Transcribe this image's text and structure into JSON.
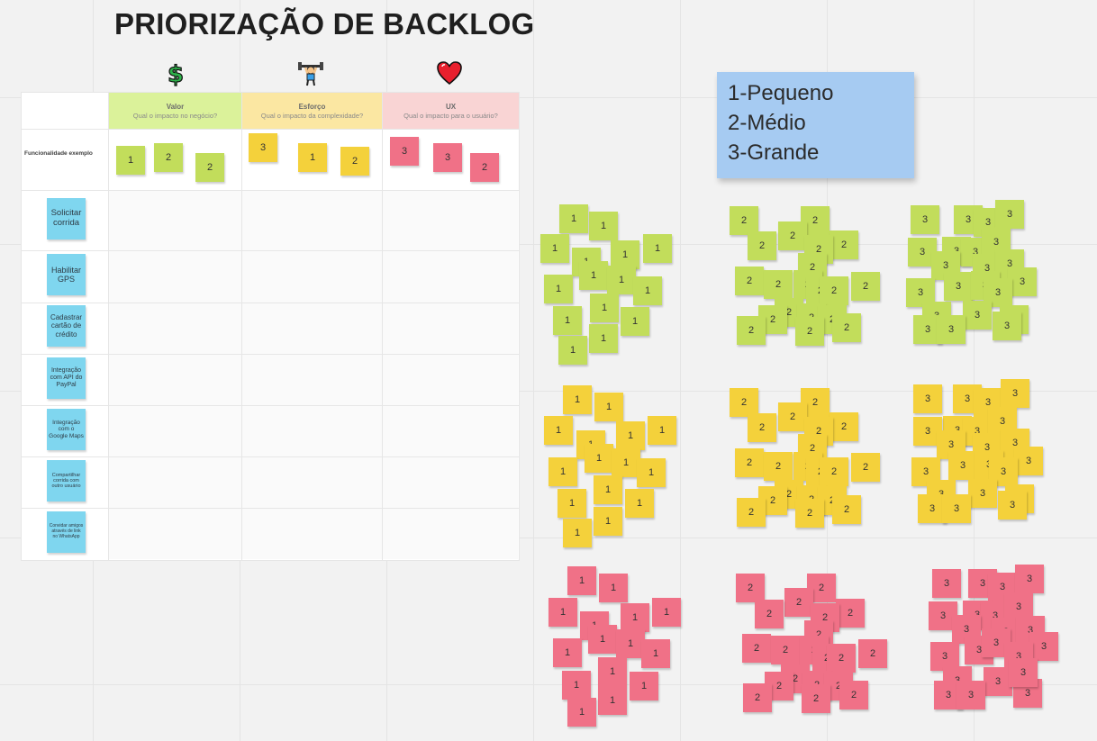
{
  "title": "PRIORIZAÇÃO DE BACKLOG",
  "colors": {
    "green": "#c2dd5b",
    "yellow": "#f4d13b",
    "pink": "#f07187",
    "cyan": "#7fd6ef",
    "legend": "#a6cbf2"
  },
  "columns": [
    {
      "label": "Valor",
      "sub": "Qual o impacto no negócio?",
      "icon": "dollar-icon"
    },
    {
      "label": "Esforço",
      "sub": "Qual o impacto da complexidade?",
      "icon": "weightlifter-icon"
    },
    {
      "label": "UX",
      "sub": "Qual o impacto para o usuário?",
      "icon": "heart-icon"
    }
  ],
  "example_row": {
    "label": "Funcionalidade exemplo",
    "valor": [
      "1",
      "2",
      "2"
    ],
    "esforco": [
      "3",
      "1",
      "2"
    ],
    "ux": [
      "3",
      "3",
      "2"
    ]
  },
  "features": [
    "Solicitar corrida",
    "Habilitar GPS",
    "Cadastrar cartão de crédito",
    "Integração com API do PayPal",
    "Integração com o Google Maps",
    "Compartilhar corrida com outro usuário",
    "Convidar amigos através de link no WhatsApp"
  ],
  "legend": [
    "1-Pequeno",
    "2-Médio",
    "3-Grande"
  ],
  "note_stacks": [
    {
      "color": "green",
      "value": "1"
    },
    {
      "color": "green",
      "value": "2"
    },
    {
      "color": "green",
      "value": "3"
    },
    {
      "color": "yellow",
      "value": "1"
    },
    {
      "color": "yellow",
      "value": "2"
    },
    {
      "color": "yellow",
      "value": "3"
    },
    {
      "color": "pink",
      "value": "1"
    },
    {
      "color": "pink",
      "value": "2"
    },
    {
      "color": "pink",
      "value": "3"
    }
  ]
}
